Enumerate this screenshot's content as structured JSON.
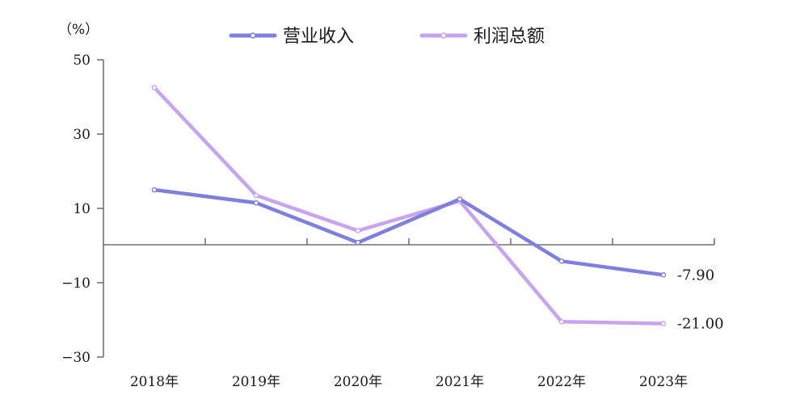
{
  "chart_data": {
    "type": "line",
    "unit": "（%）",
    "categories": [
      "2018年",
      "2019年",
      "2020年",
      "2021年",
      "2022年",
      "2023年"
    ],
    "series": [
      {
        "name": "营业收入",
        "color": "#7f7fe0",
        "values": [
          15.0,
          11.5,
          0.8,
          12.5,
          -4.2,
          -7.9
        ]
      },
      {
        "name": "利润总额",
        "color": "#c8a4ee",
        "values": [
          42.5,
          13.5,
          4.0,
          12.0,
          -20.5,
          -21.0
        ]
      }
    ],
    "end_labels": [
      "-7.90",
      "-21.00"
    ],
    "yticks": [
      50,
      30,
      10,
      -10,
      -30
    ],
    "ylim": [
      -30,
      50
    ],
    "grid": false,
    "legend_position": "top-center"
  }
}
